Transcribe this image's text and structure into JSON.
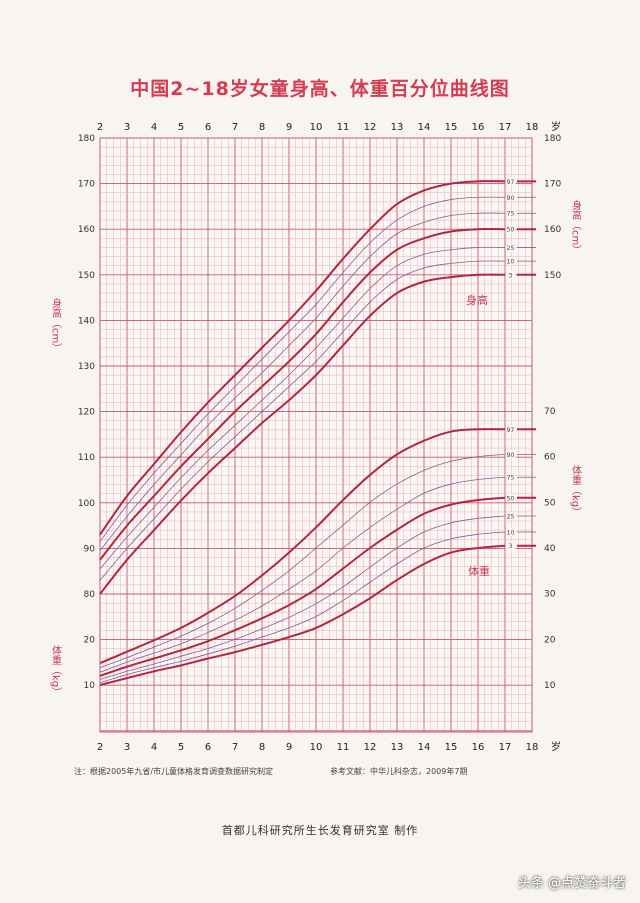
{
  "title": "中国2~18岁女童身高、体重百分位曲线图",
  "note_left": "注：根据2005年九省/市儿童体格发育调查数据研究制定",
  "note_right": "参考文献：中华儿科杂志，2009年7期",
  "footer": "首都儿科研究所生长发育研究室  制作",
  "watermark": "头条 @点赞奋斗者",
  "colors": {
    "grid": "#e6a7b1",
    "grid_major": "#c9596c",
    "curve_bold": "#b3263f",
    "curve_thin": "#8a5a9a",
    "text": "#c43a4f"
  },
  "chart_data": [
    {
      "type": "line",
      "name_label": "身高",
      "unit_label": "身高（cm）",
      "x_label": "岁",
      "x_ticks": [
        2,
        3,
        4,
        5,
        6,
        7,
        8,
        9,
        10,
        11,
        12,
        13,
        14,
        15,
        16,
        17,
        18
      ],
      "xlim": [
        2,
        18
      ],
      "ylim": [
        70,
        180
      ],
      "y_ticks_left": [
        80,
        90,
        100,
        110,
        120,
        130,
        140,
        150,
        160,
        170,
        180
      ],
      "y_ticks_right": [
        150,
        160,
        170,
        180
      ],
      "x": [
        2,
        3,
        4,
        5,
        6,
        7,
        8,
        9,
        10,
        11,
        12,
        13,
        14,
        15,
        16,
        17
      ],
      "series": [
        {
          "name": "3",
          "bold": true,
          "values": [
            80,
            87.5,
            94,
            100.5,
            106.5,
            112,
            117.5,
            122.5,
            128,
            134.5,
            141,
            146,
            148.5,
            149.5,
            150,
            150
          ]
        },
        {
          "name": "10",
          "bold": false,
          "values": [
            83,
            90,
            96.5,
            103,
            109,
            114.5,
            120,
            125.5,
            131,
            137.5,
            144,
            149,
            151.5,
            152.5,
            153,
            153
          ]
        },
        {
          "name": "25",
          "bold": false,
          "values": [
            85.5,
            92.5,
            99,
            105.5,
            111.5,
            117,
            122.5,
            128,
            134,
            140.5,
            147,
            152,
            154.5,
            155.5,
            156,
            156
          ]
        },
        {
          "name": "50",
          "bold": true,
          "values": [
            87.5,
            95,
            101.5,
            108,
            114,
            120,
            125.5,
            131,
            137,
            144,
            150.5,
            155.5,
            158,
            159.5,
            160,
            160
          ]
        },
        {
          "name": "75",
          "bold": false,
          "values": [
            89.5,
            97,
            104,
            110.5,
            117,
            123,
            128.5,
            134.5,
            140.5,
            147.5,
            154,
            159,
            161.5,
            163,
            163.5,
            163.5
          ]
        },
        {
          "name": "90",
          "bold": false,
          "values": [
            91.5,
            99.5,
            106.5,
            113,
            119.5,
            125.5,
            131.5,
            137.5,
            143.5,
            150.5,
            157,
            162,
            165,
            166.5,
            167,
            167
          ]
        },
        {
          "name": "97",
          "bold": true,
          "values": [
            93,
            101.5,
            108.5,
            115.5,
            122,
            128,
            134,
            140,
            146.5,
            153.5,
            160,
            165.5,
            168.5,
            170,
            170.5,
            170.5
          ]
        }
      ]
    },
    {
      "type": "line",
      "name_label": "体重",
      "unit_label": "体重（kg）",
      "x_label": "岁",
      "x_ticks": [
        2,
        3,
        4,
        5,
        6,
        7,
        8,
        9,
        10,
        11,
        12,
        13,
        14,
        15,
        16,
        17,
        18
      ],
      "xlim": [
        2,
        18
      ],
      "ylim": [
        5,
        70
      ],
      "y_ticks_left": [
        10,
        20
      ],
      "y_ticks_right": [
        10,
        20,
        30,
        40,
        50,
        60,
        70
      ],
      "x": [
        2,
        3,
        4,
        5,
        6,
        7,
        8,
        9,
        10,
        11,
        12,
        13,
        14,
        15,
        16,
        17
      ],
      "series": [
        {
          "name": "3",
          "bold": true,
          "values": [
            10,
            11.5,
            13,
            14.3,
            15.8,
            17.2,
            18.8,
            20.5,
            22.5,
            25.5,
            29,
            33,
            36.5,
            39,
            40,
            40.5
          ]
        },
        {
          "name": "10",
          "bold": false,
          "values": [
            10.5,
            12.3,
            13.8,
            15.2,
            16.8,
            18.5,
            20.5,
            22.5,
            25,
            28.5,
            32.5,
            36.5,
            40,
            42,
            43,
            43.5
          ]
        },
        {
          "name": "25",
          "bold": false,
          "values": [
            11.2,
            13,
            14.6,
            16.3,
            18,
            20,
            22.3,
            24.8,
            27.8,
            31.5,
            35.8,
            40,
            43.5,
            45.5,
            46.5,
            47
          ]
        },
        {
          "name": "50",
          "bold": true,
          "values": [
            12,
            14,
            15.8,
            17.6,
            19.6,
            22,
            24.6,
            27.5,
            31,
            35.5,
            40,
            44,
            47.5,
            49.5,
            50.5,
            51
          ]
        },
        {
          "name": "75",
          "bold": false,
          "values": [
            12.8,
            15,
            17,
            19,
            21.5,
            24.2,
            27.3,
            31,
            35,
            40,
            44.5,
            48.5,
            52,
            54,
            55,
            55.5
          ]
        },
        {
          "name": "90",
          "bold": false,
          "values": [
            13.8,
            16,
            18.3,
            20.7,
            23.5,
            26.8,
            30.7,
            35,
            40,
            45,
            50,
            54,
            57,
            59,
            60,
            60.5
          ]
        },
        {
          "name": "97",
          "bold": true,
          "values": [
            14.8,
            17.3,
            19.8,
            22.5,
            25.8,
            29.5,
            34,
            39,
            44.5,
            50.5,
            56,
            60.5,
            63.5,
            65.5,
            66,
            66
          ]
        }
      ]
    }
  ]
}
